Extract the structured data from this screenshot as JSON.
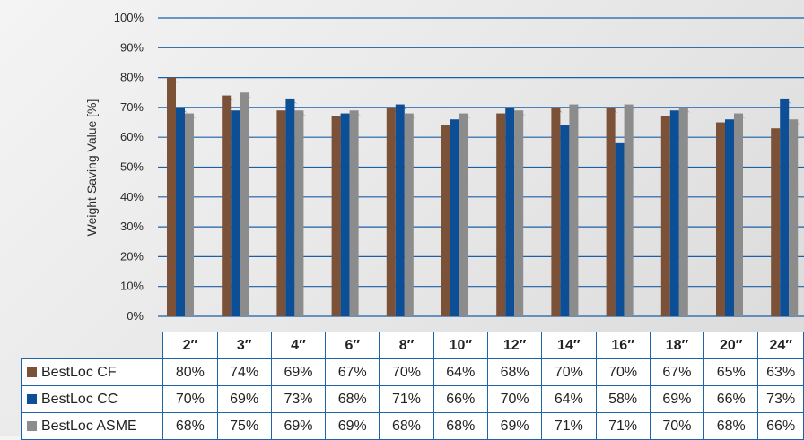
{
  "colors": {
    "grid": "#1a5fa8",
    "cf": "#7b5138",
    "cc": "#0d4f96",
    "asme": "#8c8c8c"
  },
  "chart_data": {
    "type": "bar",
    "ylabel": "Weight Saving Value [%]",
    "ylim": [
      0,
      100
    ],
    "yticks": [
      "0%",
      "10%",
      "20%",
      "30%",
      "40%",
      "50%",
      "60%",
      "70%",
      "80%",
      "90%",
      "100%"
    ],
    "categories": [
      "2″",
      "3″",
      "4″",
      "6″",
      "8″",
      "10″",
      "12″",
      "14″",
      "16″",
      "18″",
      "20″",
      "24″"
    ],
    "series": [
      {
        "name": "BestLoc CF",
        "values": [
          80,
          74,
          69,
          67,
          70,
          64,
          68,
          70,
          70,
          67,
          65,
          63
        ]
      },
      {
        "name": "BestLoc CC",
        "values": [
          70,
          69,
          73,
          68,
          71,
          66,
          70,
          64,
          58,
          69,
          66,
          73
        ]
      },
      {
        "name": "BestLoc ASME",
        "values": [
          68,
          75,
          69,
          69,
          68,
          68,
          69,
          71,
          71,
          70,
          68,
          66
        ]
      }
    ],
    "table": {
      "rows": [
        [
          "80%",
          "74%",
          "69%",
          "67%",
          "70%",
          "64%",
          "68%",
          "70%",
          "70%",
          "67%",
          "65%",
          "63%"
        ],
        [
          "70%",
          "69%",
          "73%",
          "68%",
          "71%",
          "66%",
          "70%",
          "64%",
          "58%",
          "69%",
          "66%",
          "73%"
        ],
        [
          "68%",
          "75%",
          "69%",
          "69%",
          "68%",
          "68%",
          "69%",
          "71%",
          "71%",
          "70%",
          "68%",
          "66%"
        ]
      ]
    },
    "grid": true,
    "legend": "table-left"
  }
}
